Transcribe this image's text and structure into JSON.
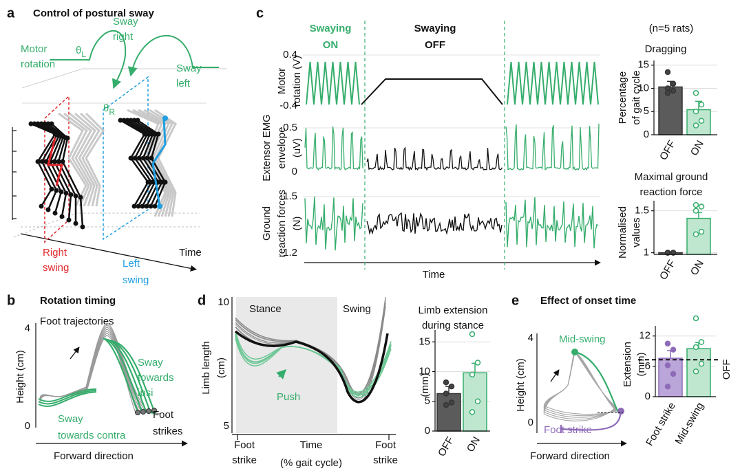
{
  "panel_a": {
    "letter": "a",
    "title": "Control of postural sway",
    "motor_rotation": [
      "Motor",
      "rotation"
    ],
    "theta_left": {
      "symbol": "θ",
      "sub": "L"
    },
    "sway_right": [
      "Sway",
      "right"
    ],
    "sway_left": [
      "Sway",
      "left"
    ],
    "theta_right": {
      "symbol": "θ",
      "sub": "R"
    },
    "right_swing": [
      "Right",
      "swing"
    ],
    "left_swing": [
      "Left",
      "swing"
    ],
    "time_axis": "Time"
  },
  "panel_b": {
    "letter": "b",
    "title": "Rotation timing",
    "subtitle": "Foot trajectories",
    "y_label": "Height (cm)",
    "y_ticks": [
      "4",
      "0"
    ],
    "sway_ipsi": [
      "Sway",
      "towards",
      "ipsi"
    ],
    "sway_contra": [
      "Sway",
      "towards contra"
    ],
    "foot_strikes": [
      "Foot",
      "strikes"
    ],
    "x_label": "Forward direction"
  },
  "panel_c": {
    "letter": "c",
    "swaying_on": [
      "Swaying",
      "ON"
    ],
    "swaying_off": [
      "Swaying",
      "OFF"
    ],
    "n_note": "(n=5 rats)",
    "rows": [
      {
        "label": [
          "Motor",
          "rotation (V)"
        ],
        "ticks": [
          "0.4",
          "-0.4"
        ]
      },
      {
        "label": [
          "Extensor EMG",
          "envelope",
          "(uV)"
        ],
        "ticks": [
          "0.5",
          "0"
        ]
      },
      {
        "label": [
          "Ground",
          "reaction forces",
          "(N)"
        ],
        "ticks": [
          "1.5",
          "1.2"
        ]
      }
    ],
    "x_label": "Time"
  },
  "panel_d": {
    "letter": "d",
    "y_label": [
      "Limb length",
      "(cm)"
    ],
    "y_ticks": [
      "10",
      "5"
    ],
    "stance": "Stance",
    "swing": "Swing",
    "push": "Push",
    "x_start": [
      "Foot",
      "strike"
    ],
    "x_label": [
      "Time",
      "(% gait cycle)"
    ],
    "x_end": [
      "Foot",
      "strike"
    ]
  },
  "panel_e": {
    "letter": "e",
    "title": "Effect of onset time",
    "y_label": "Height (cm)",
    "y_ticks": [
      "4",
      "0"
    ],
    "mid_swing": "Mid-swing",
    "foot_strike": "Foot strike",
    "x_label": "Forward direction"
  },
  "chart_data": [
    {
      "type": "bar",
      "title": [
        "Dragging"
      ],
      "y_label": [
        "Percentage",
        "of gait cycle"
      ],
      "categories": [
        "OFF",
        "ON"
      ],
      "values": [
        10.3,
        5.4
      ],
      "errors": [
        1.2,
        1.8
      ],
      "points": [
        [
          13.5,
          11,
          10,
          9.5,
          9
        ],
        [
          9,
          6.5,
          5,
          3,
          2
        ]
      ],
      "colors": [
        "#5b5b5b",
        "#bfe6cf"
      ],
      "edge_colors": [
        "#333333",
        "#35ad6b"
      ],
      "point_colors": [
        "#444444",
        "#ffffff"
      ],
      "ylim": [
        0,
        16
      ],
      "yticks": [
        0,
        5,
        10,
        15
      ],
      "grid": true
    },
    {
      "type": "bar",
      "title": [
        "Maximal ground",
        "reaction force"
      ],
      "y_label": [
        "Normalised",
        "values"
      ],
      "categories": [
        "OFF",
        "ON"
      ],
      "values": [
        1.0,
        1.41
      ],
      "errors": [
        0.005,
        0.07
      ],
      "points": [
        [
          1,
          1,
          1,
          1,
          1
        ],
        [
          1.57,
          1.55,
          1.5,
          1.25,
          1.22
        ]
      ],
      "colors": [
        "#5b5b5b",
        "#bfe6cf"
      ],
      "edge_colors": [
        "#333333",
        "#35ad6b"
      ],
      "point_colors": [
        "#444444",
        "#ffffff"
      ],
      "ylim": [
        0.98,
        1.62
      ],
      "yticks": [
        1,
        1.5
      ],
      "grid": true
    },
    {
      "type": "bar",
      "title": [
        "Limb extension",
        "during stance"
      ],
      "y_label": [
        "(mm)"
      ],
      "categories": [
        "OFF",
        "ON"
      ],
      "values": [
        6.3,
        9.8
      ],
      "errors": [
        1.2,
        1.6
      ],
      "points": [
        [
          8.2,
          7.5,
          6.3,
          4.8,
          4.4
        ],
        [
          16.3,
          11.5,
          9.5,
          5,
          3.2
        ]
      ],
      "colors": [
        "#5b5b5b",
        "#bfe6cf"
      ],
      "edge_colors": [
        "#333333",
        "#35ad6b"
      ],
      "point_colors": [
        "#444444",
        "#ffffff"
      ],
      "ylim": [
        0,
        17
      ],
      "yticks": [
        0,
        5,
        10,
        15
      ],
      "grid": true
    },
    {
      "type": "bar",
      "title": [],
      "y_label": [
        "Extension",
        "(mm)"
      ],
      "categories": [
        "Foot strike",
        "Mid-swing"
      ],
      "values": [
        7.6,
        9.5
      ],
      "errors": [
        1.5,
        1.2
      ],
      "points": [
        [
          10.5,
          9.3,
          6.2,
          4.5,
          2.0
        ],
        [
          15.5,
          10.8,
          9.8,
          6.5,
          5.0
        ]
      ],
      "colors": [
        "#bba6da",
        "#bfe6cf"
      ],
      "edge_colors": [
        "#8e6bb8",
        "#35ad6b"
      ],
      "point_colors": [
        "#8e6bb8",
        "#ffffff"
      ],
      "reference": {
        "value": 7.3,
        "label": "OFF"
      },
      "ylim": [
        0,
        14
      ],
      "yticks": [
        0,
        6,
        12
      ],
      "grid": true
    }
  ]
}
